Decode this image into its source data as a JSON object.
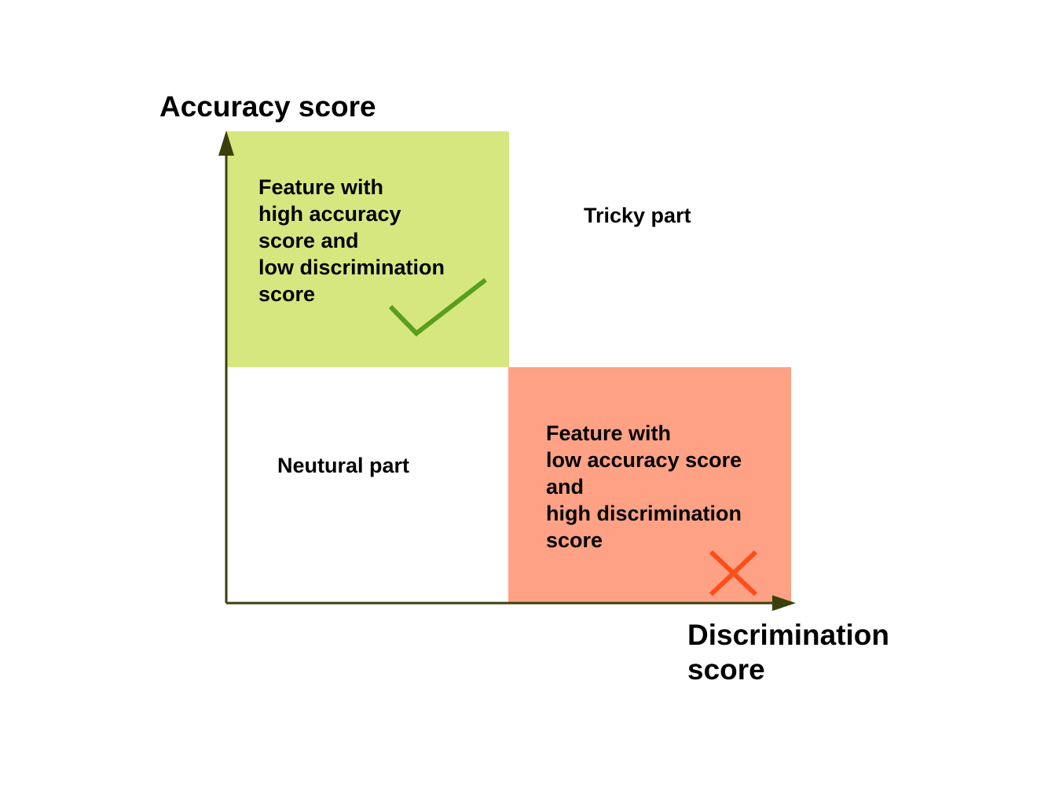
{
  "axes": {
    "y_title": "Accuracy score",
    "x_title_lines": [
      "Discrimination",
      "score"
    ],
    "axis_color": "#3b3f0c"
  },
  "regions": {
    "good": {
      "lines": [
        "Feature with",
        "high accuracy",
        "score and",
        "low discrimination",
        "score"
      ],
      "fill_color": "#d7e77f",
      "icon": "checkmark-icon",
      "icon_color": "#5a9e1e"
    },
    "bad": {
      "lines": [
        "Feature with",
        "low accuracy score",
        "and",
        "high discrimination",
        "score"
      ],
      "fill_color": "#ffa185",
      "icon": "cross-icon",
      "icon_color": "#ff4d1a"
    },
    "tricky": {
      "label": "Tricky part"
    },
    "neutral": {
      "label": "Neutural part"
    }
  }
}
